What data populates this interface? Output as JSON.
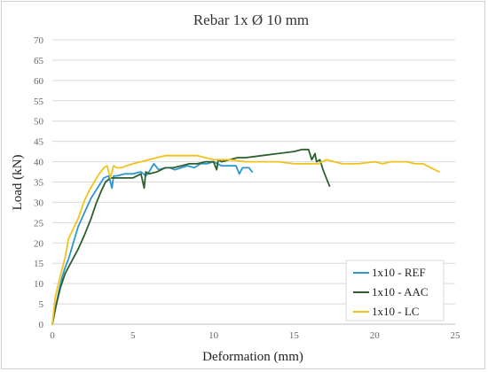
{
  "chart_data": {
    "type": "line",
    "title": "Rebar 1x Ø 10 mm",
    "xlabel": "Deformation (mm)",
    "ylabel": "Load (kN)",
    "xlim": [
      0,
      25
    ],
    "ylim": [
      0,
      70
    ],
    "xticks": [
      "0",
      "5",
      "10",
      "15",
      "20",
      "25"
    ],
    "yticks": [
      "0",
      "5",
      "10",
      "15",
      "20",
      "25",
      "30",
      "35",
      "40",
      "45",
      "50",
      "55",
      "60",
      "65",
      "70"
    ],
    "grid": true,
    "legend_position": "bottom-right",
    "series": [
      {
        "name": "1x10 - REF",
        "color": "#2e95d3",
        "x": [
          0.0,
          0.2,
          0.4,
          0.6,
          0.8,
          1.0,
          1.3,
          1.6,
          2.0,
          2.4,
          2.8,
          3.2,
          3.5,
          3.7,
          3.8,
          4.0,
          4.5,
          5.0,
          5.5,
          5.8,
          6.0,
          6.3,
          6.6,
          7.0,
          7.3,
          7.6,
          8.0,
          8.4,
          8.8,
          9.2,
          9.6,
          10.0,
          10.5,
          11.0,
          11.2,
          11.4,
          11.6,
          11.8,
          12.0,
          12.2,
          12.4
        ],
        "y": [
          0.0,
          4.0,
          8.0,
          11.5,
          14.0,
          16.0,
          20.0,
          24.0,
          27.5,
          31.0,
          33.5,
          36.0,
          36.5,
          33.5,
          36.5,
          36.5,
          37.0,
          37.0,
          37.5,
          36.5,
          37.5,
          39.5,
          38.0,
          38.5,
          38.5,
          38.0,
          38.5,
          39.0,
          38.5,
          39.5,
          39.5,
          40.0,
          39.0,
          39.0,
          39.0,
          39.0,
          37.0,
          38.5,
          38.5,
          38.5,
          37.5
        ]
      },
      {
        "name": "1x10 - AAC",
        "color": "#2d5f2e",
        "x": [
          0.0,
          0.2,
          0.5,
          0.8,
          1.2,
          1.6,
          2.0,
          2.4,
          2.7,
          3.0,
          3.3,
          3.6,
          4.0,
          4.5,
          5.0,
          5.5,
          5.7,
          5.8,
          6.0,
          6.5,
          7.0,
          7.5,
          8.0,
          8.5,
          9.0,
          9.5,
          10.0,
          10.2,
          10.3,
          10.5,
          11.0,
          11.5,
          12.0,
          13.0,
          14.0,
          15.0,
          15.5,
          15.9,
          16.1,
          16.3,
          16.4,
          16.6,
          16.8,
          17.0,
          17.2
        ],
        "y": [
          0.0,
          4.0,
          9.0,
          12.5,
          15.5,
          18.5,
          22.0,
          26.0,
          29.5,
          32.5,
          35.0,
          36.0,
          36.0,
          36.0,
          36.0,
          37.0,
          33.5,
          37.5,
          37.0,
          37.5,
          38.5,
          38.5,
          39.0,
          39.5,
          39.5,
          40.0,
          40.0,
          38.0,
          40.5,
          40.0,
          40.5,
          41.0,
          41.0,
          41.5,
          42.0,
          42.5,
          43.0,
          43.0,
          40.5,
          42.0,
          40.0,
          40.5,
          38.0,
          36.0,
          34.0
        ]
      },
      {
        "name": "1x10 - LC",
        "color": "#f2c21b",
        "x": [
          0.0,
          0.2,
          0.5,
          0.8,
          1.0,
          1.3,
          1.6,
          2.0,
          2.3,
          2.6,
          2.9,
          3.2,
          3.4,
          3.6,
          3.8,
          4.0,
          4.3,
          4.6,
          5.0,
          5.5,
          6.0,
          6.5,
          7.0,
          7.5,
          8.0,
          8.5,
          9.0,
          9.5,
          10.0,
          10.5,
          11.0,
          12.0,
          13.0,
          14.0,
          15.0,
          16.0,
          16.5,
          17.0,
          17.5,
          18.0,
          19.0,
          20.0,
          20.5,
          21.0,
          22.0,
          22.5,
          23.0,
          23.5,
          24.0
        ],
        "y": [
          0.0,
          7.0,
          12.0,
          16.5,
          21.0,
          23.5,
          26.0,
          30.5,
          33.0,
          35.0,
          37.0,
          38.5,
          39.0,
          36.0,
          39.0,
          38.5,
          38.5,
          39.0,
          39.5,
          40.0,
          40.5,
          41.0,
          41.5,
          41.5,
          41.5,
          41.5,
          41.5,
          41.0,
          40.5,
          40.5,
          40.5,
          40.0,
          40.0,
          40.0,
          39.5,
          39.5,
          39.5,
          40.5,
          40.0,
          39.5,
          39.5,
          40.0,
          39.5,
          40.0,
          40.0,
          39.5,
          39.5,
          38.5,
          37.5
        ]
      }
    ]
  }
}
